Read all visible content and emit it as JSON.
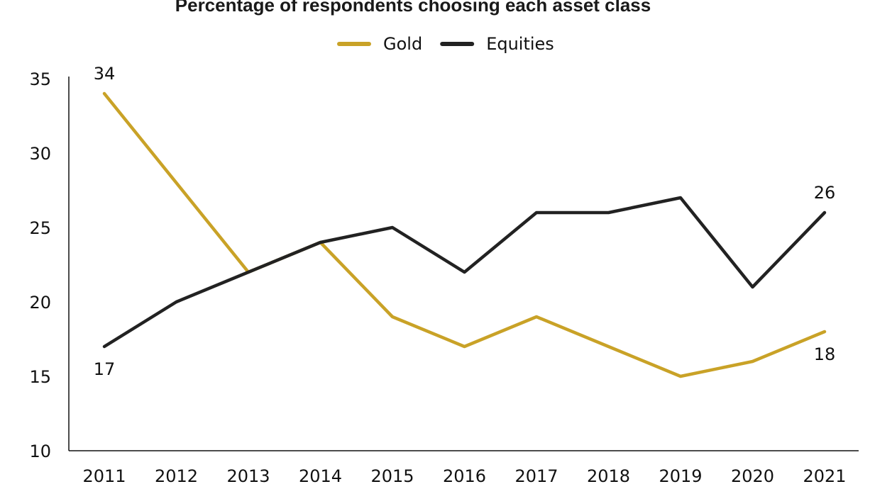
{
  "chart_data": {
    "type": "line",
    "title": "Percentage of respondents choosing each asset class",
    "xlabel": "",
    "ylabel": "",
    "x": [
      "2011",
      "2012",
      "2013",
      "2014",
      "2015",
      "2016",
      "2017",
      "2018",
      "2019",
      "2020",
      "2021"
    ],
    "ylim": [
      10,
      35
    ],
    "yticks": [
      10,
      15,
      20,
      25,
      30,
      35
    ],
    "grid": false,
    "legend_position": "top-center",
    "series": [
      {
        "name": "Gold",
        "color": "#c9a227",
        "values": [
          34,
          28,
          22,
          24,
          19,
          17,
          19,
          17,
          15,
          16,
          18
        ],
        "labels": [
          {
            "index": 0,
            "text": "34",
            "position": "above"
          },
          {
            "index": 10,
            "text": "18",
            "position": "below"
          }
        ]
      },
      {
        "name": "Equities",
        "color": "#222222",
        "values": [
          17,
          20,
          22,
          24,
          25,
          22,
          26,
          26,
          27,
          21,
          26
        ],
        "labels": [
          {
            "index": 0,
            "text": "17",
            "position": "below"
          },
          {
            "index": 10,
            "text": "26",
            "position": "above"
          }
        ]
      }
    ]
  }
}
